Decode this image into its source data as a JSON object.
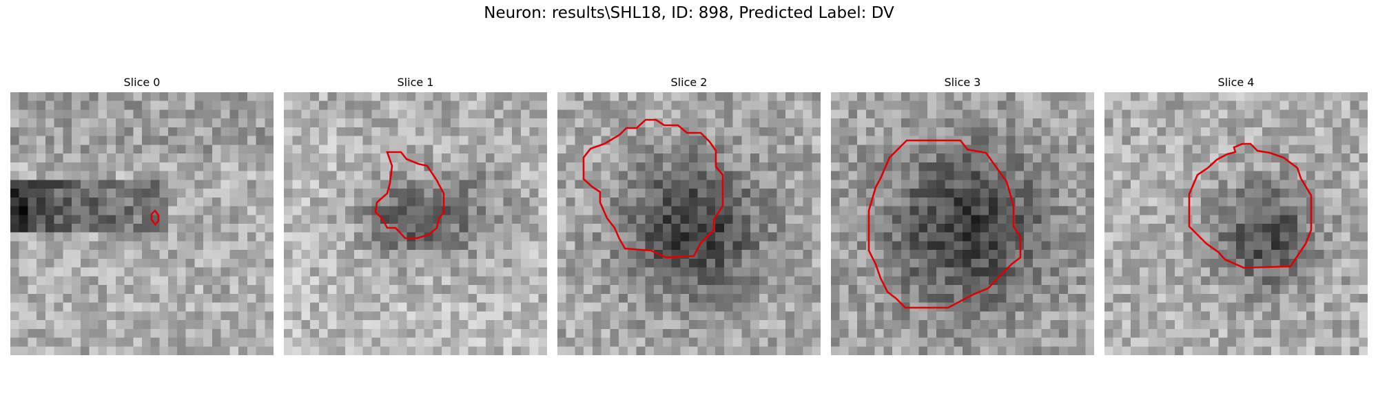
{
  "figure": {
    "title": "Neuron: results\\SHL18, ID: 898, Predicted Label: DV"
  },
  "panels": [
    {
      "title": "Slice 0"
    },
    {
      "title": "Slice 1"
    },
    {
      "title": "Slice 2"
    },
    {
      "title": "Slice 3"
    },
    {
      "title": "Slice 4"
    }
  ],
  "style": {
    "contour_color": "#e00000",
    "colormap": "gray"
  }
}
